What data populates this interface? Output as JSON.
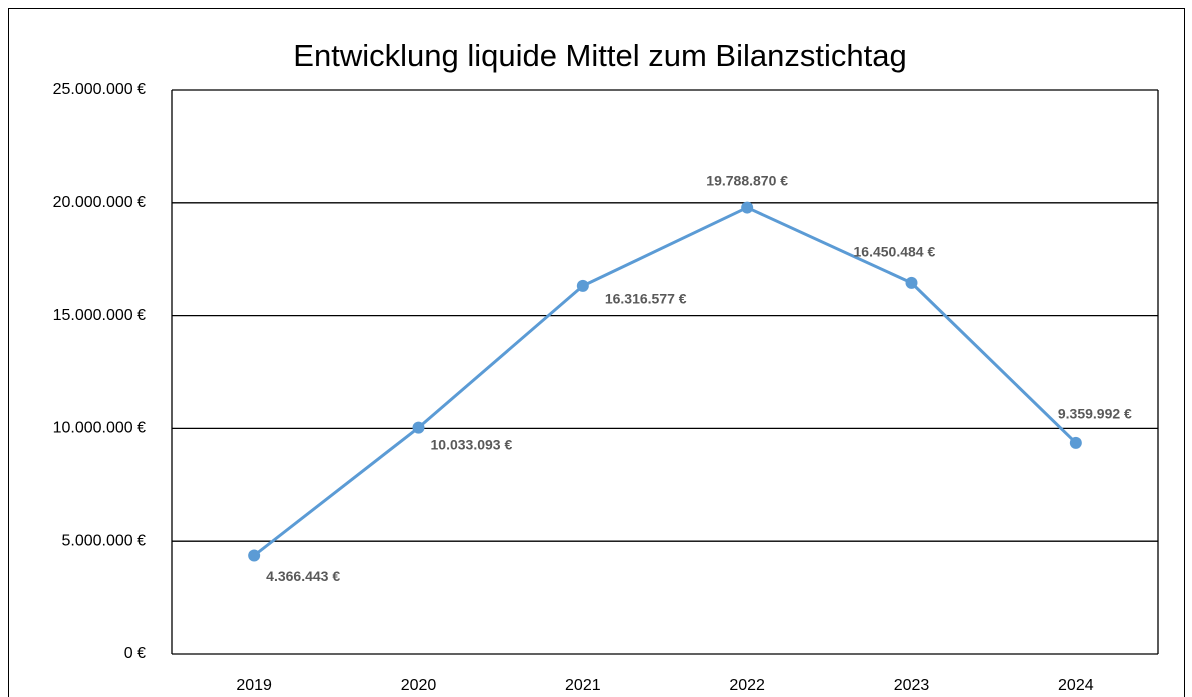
{
  "chart_data": {
    "type": "line",
    "title": "Entwicklung liquide Mittel zum Bilanzstichtag",
    "categories": [
      "2019",
      "2020",
      "2021",
      "2022",
      "2023",
      "2024"
    ],
    "series": [
      {
        "name": "liquide Mittel",
        "color": "#5b9bd5",
        "values": [
          4366443,
          10033093,
          16316577,
          19788870,
          16450484,
          9359992
        ],
        "value_labels": [
          "4.366.443 €",
          "10.033.093 €",
          "16.316.577 €",
          "19.788.870 €",
          "16.450.484 €",
          "9.359.992 €"
        ]
      }
    ],
    "ylim": [
      0,
      25000000
    ],
    "yticks": [
      {
        "value": 0,
        "label": "0 €"
      },
      {
        "value": 5000000,
        "label": "5.000.000 €"
      },
      {
        "value": 10000000,
        "label": "10.000.000 €"
      },
      {
        "value": 15000000,
        "label": "15.000.000 €"
      },
      {
        "value": 20000000,
        "label": "20.000.000 €"
      },
      {
        "value": 25000000,
        "label": "25.000.000 €"
      }
    ],
    "grid": true
  }
}
